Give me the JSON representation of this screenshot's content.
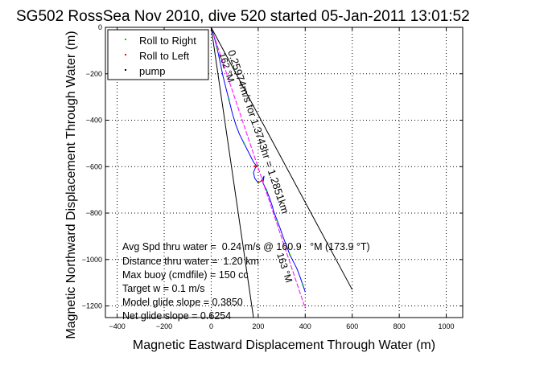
{
  "chart_data": {
    "type": "line",
    "title": "SG502 RossSea Nov 2010, dive 520 started 05-Jan-2011 13:01:52",
    "xlabel": "Magnetic Eastward Displacement Through Water (m)",
    "ylabel": "Magnetic Northward Displacement Through Water (m)",
    "xlim": [
      -450,
      1070
    ],
    "ylim": [
      -1250,
      0
    ],
    "xticks": [
      -400,
      -200,
      0,
      200,
      400,
      600,
      800,
      1000
    ],
    "yticks": [
      0,
      -200,
      -400,
      -600,
      -800,
      -1000,
      -1200
    ],
    "grid": true,
    "legend": {
      "placement": "top-left",
      "entries": [
        {
          "label": "Roll to Right",
          "color": "#00cc00"
        },
        {
          "label": "Roll to Left",
          "color": "#ff0000"
        },
        {
          "label": "pump",
          "color": "#000000"
        }
      ]
    },
    "series": [
      {
        "name": "track",
        "color": "#0000ff",
        "x": [
          0,
          10,
          25,
          40,
          50,
          65,
          75,
          90,
          105,
          120,
          140,
          160,
          180,
          195,
          200,
          190,
          180,
          185,
          200,
          215,
          225,
          220,
          235,
          250,
          260,
          265,
          280,
          295,
          305,
          320,
          335,
          350,
          365,
          380,
          390,
          400
        ],
        "y": [
          0,
          -30,
          -90,
          -160,
          -210,
          -270,
          -310,
          -370,
          -420,
          -460,
          -500,
          -540,
          -580,
          -600,
          -595,
          -600,
          -625,
          -650,
          -670,
          -660,
          -640,
          -670,
          -700,
          -740,
          -770,
          -790,
          -830,
          -870,
          -900,
          -940,
          -980,
          -1010,
          -1040,
          -1080,
          -1110,
          -1140
        ]
      },
      {
        "name": "net-displacement",
        "color": "#ff00ff",
        "x": [
          0,
          400
        ],
        "y": [
          0,
          -1210
        ]
      },
      {
        "name": "heading-bound-1",
        "color": "#000000",
        "x": [
          0,
          600
        ],
        "y": [
          0,
          -1130
        ]
      },
      {
        "name": "heading-bound-2",
        "color": "#000000",
        "x": [
          0,
          180
        ],
        "y": [
          0,
          -1250
        ]
      }
    ],
    "annotations": {
      "speed_line": "0.25974m/s for 1.3743hr = 1.2851km",
      "heading_top": "162 °M",
      "heading_bottom": "163 °M"
    },
    "stats": [
      "Avg Spd thru water =  0.24 m/s @ 160.9   °M (173.9 °T)",
      "Distance thru water =  1.20 km",
      "Max buoy (cmdfile) = 150 cc",
      "Target w = 0.1 m/s",
      "Model glide slope = 0.3850",
      "Net glide slope = 0.6254"
    ]
  }
}
